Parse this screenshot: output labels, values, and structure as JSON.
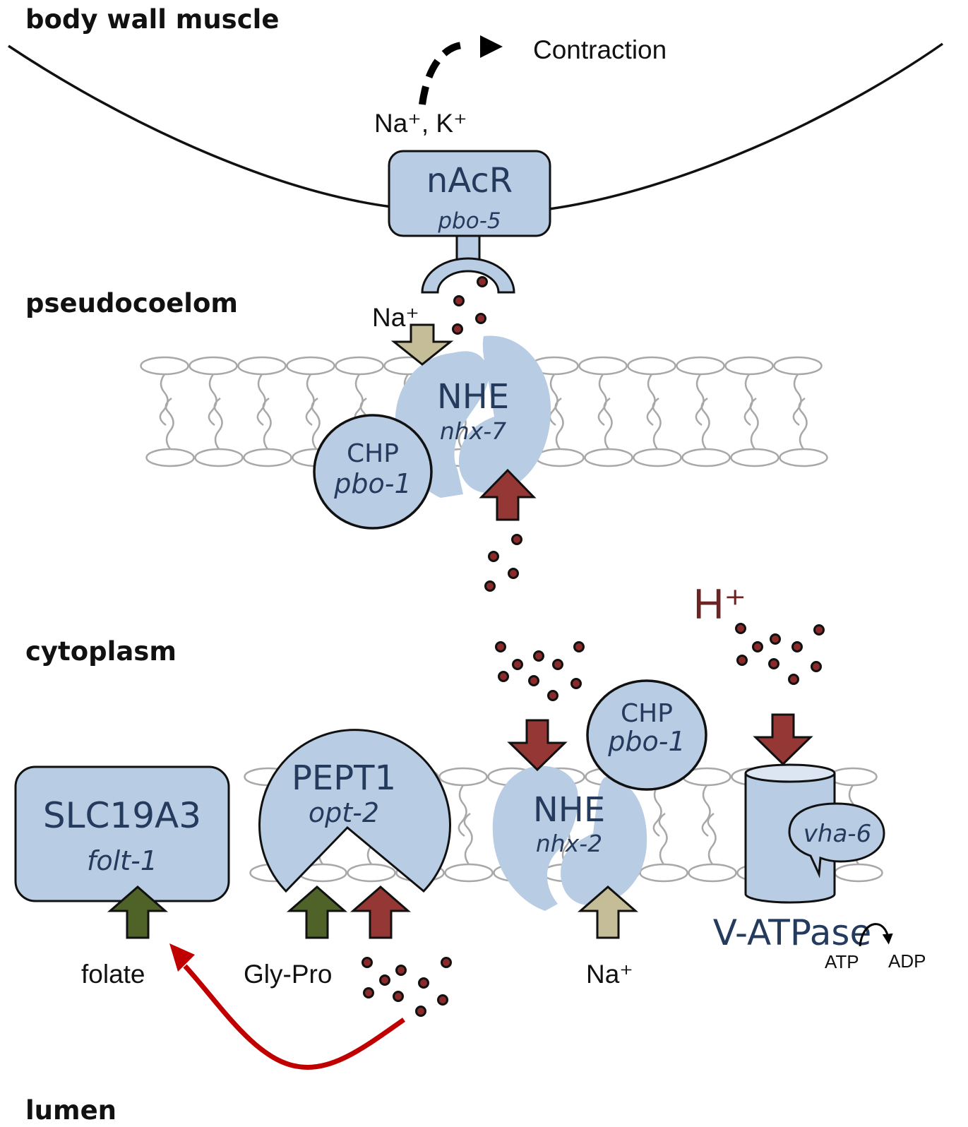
{
  "regions": {
    "body_wall_muscle": "body wall muscle",
    "pseudocoelom": "pseudocoelom",
    "cytoplasm": "cytoplasm",
    "lumen": "lumen"
  },
  "labels": {
    "contraction": "Contraction",
    "na_k_plus": "Na⁺, K⁺",
    "na_plus": "Na⁺",
    "h_plus": "H⁺",
    "atp": "ATP",
    "adp": "ADP",
    "folate": "folate",
    "gly_pro": "Gly-Pro",
    "v_atpase": "V-ATPase"
  },
  "proteins": {
    "nacr": {
      "name": "nAcR",
      "gene": "pbo-5"
    },
    "nhe_top": {
      "name": "NHE",
      "gene": "nhx-7"
    },
    "chp_top": {
      "name": "CHP",
      "gene": "pbo-1"
    },
    "slc19a3": {
      "name": "SLC19A3",
      "gene": "folt-1"
    },
    "pept1": {
      "name": "PEPT1",
      "gene": "opt-2"
    },
    "nhe_bottom": {
      "name": "NHE",
      "gene": "nhx-2"
    },
    "chp_bottom": {
      "name": "CHP",
      "gene": "pbo-1"
    },
    "vha": {
      "gene": "vha-6"
    }
  },
  "colors": {
    "protein_fill": "#b8cce4",
    "protein_text": "#243b5e",
    "proton_arrow": "#953735",
    "sodium_arrow": "#c4bd97",
    "folate_arrow": "#4f6228",
    "activation_curve": "#c00000",
    "proton_dot": "#8b2a2a",
    "membrane": "#a8a8a8"
  }
}
